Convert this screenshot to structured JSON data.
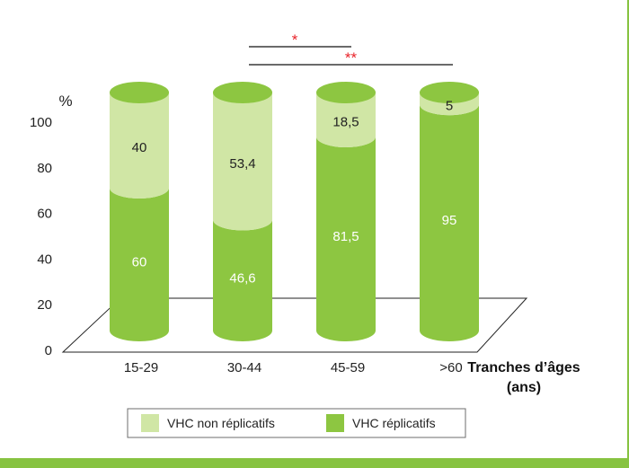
{
  "chart_data": {
    "type": "bar",
    "stacked": true,
    "style": "3d-cylinder",
    "categories": [
      "15-29",
      "30-44",
      "45-59",
      ">60"
    ],
    "series": [
      {
        "name": "VHC réplicatifs",
        "values": [
          60,
          46.6,
          81.5,
          95
        ],
        "labels": [
          "60",
          "46,6",
          "81,5",
          "95"
        ]
      },
      {
        "name": "VHC non réplicatifs",
        "values": [
          40,
          53.4,
          18.5,
          5
        ],
        "labels": [
          "40",
          "53,4",
          "18,5",
          "5"
        ]
      }
    ],
    "y_unit": "%",
    "xlabel": [
      "Tranches d’âges",
      "(ans)"
    ],
    "yticks": [
      "0",
      "20",
      "40",
      "60",
      "80",
      "100"
    ],
    "ylim": [
      0,
      100
    ],
    "significance": [
      {
        "from": "30-44",
        "to": "45-59",
        "label": "*"
      },
      {
        "from": "30-44",
        "to": ">60",
        "label": "**"
      }
    ],
    "legend_position": "bottom",
    "colors": {
      "VHC réplicatifs": "#8dc641",
      "VHC non réplicatifs": "#d0e6a5",
      "significance": "#e8232a",
      "frame": "#87c341"
    }
  }
}
